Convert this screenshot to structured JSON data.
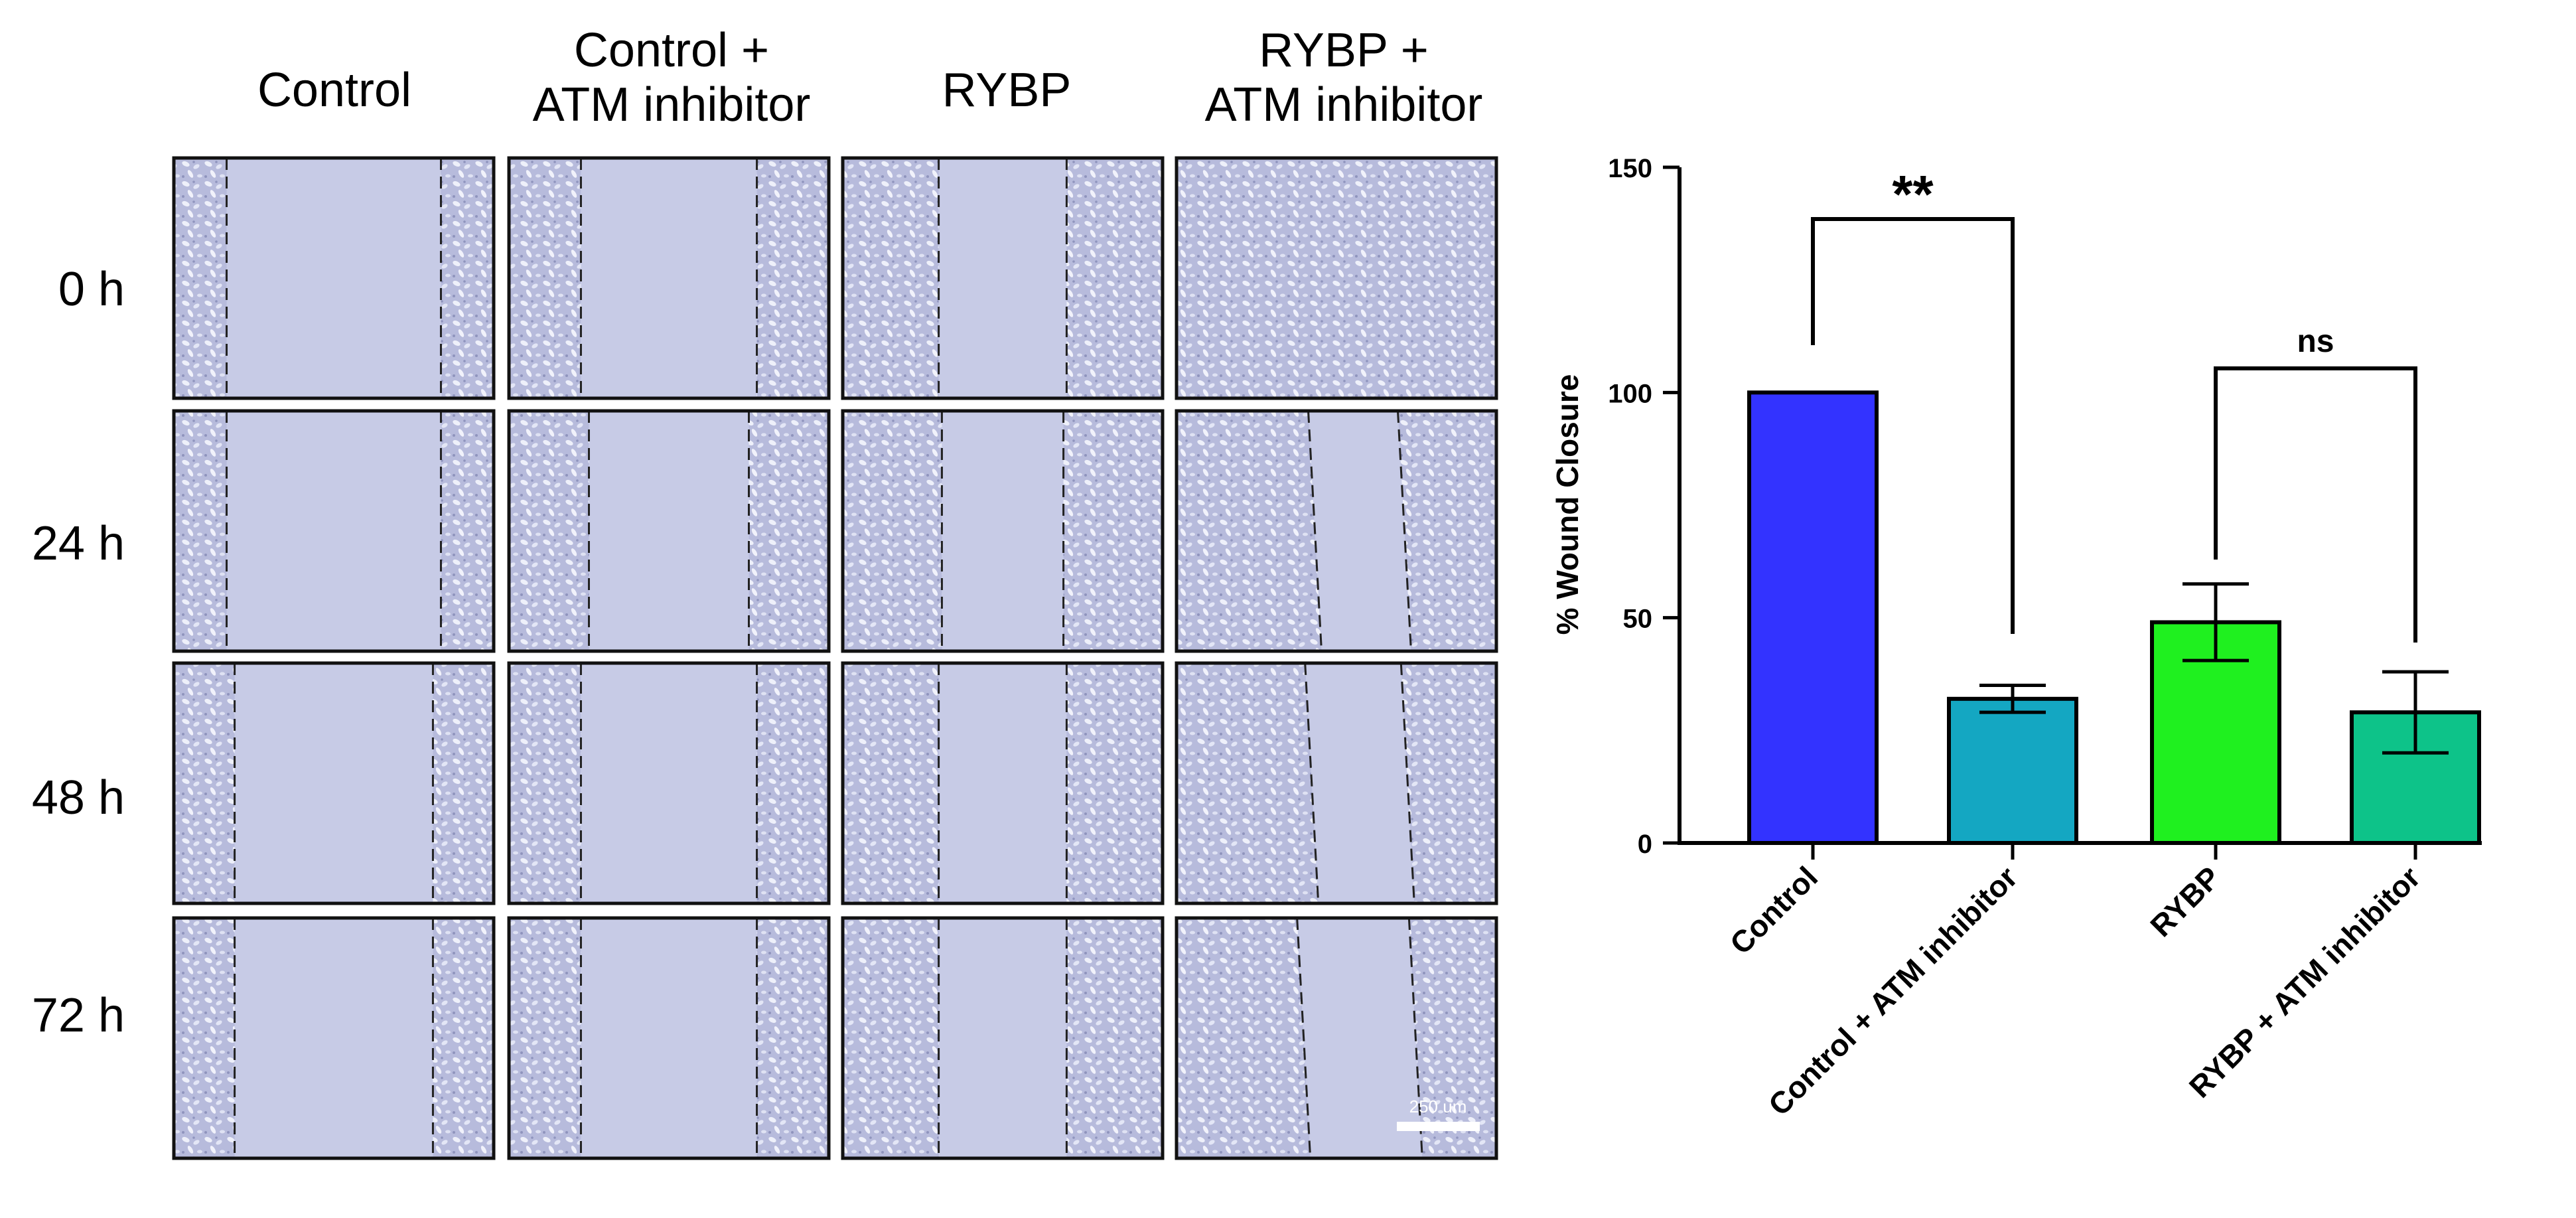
{
  "panel_columns": [
    "Control",
    "Control +\nATM inhibitor",
    "RYBP",
    "RYBP +\nATM inhibitor"
  ],
  "panel_rows": [
    "0 h",
    "24 h",
    "48 h",
    "72 h"
  ],
  "scale_bar_label": "250 um",
  "colors": {
    "micrograph_bg": "#c7cbe6",
    "micrograph_dense": "#b5b9da",
    "micrograph_cell": "#eef0fa",
    "border": "#111111"
  },
  "wound_gaps_fraction": [
    [
      0.67,
      0.55,
      0.4,
      0.0
    ],
    [
      0.67,
      0.5,
      0.38,
      0.28
    ],
    [
      0.62,
      0.55,
      0.4,
      0.3
    ],
    [
      0.62,
      0.55,
      0.4,
      0.35
    ]
  ],
  "chart_data": {
    "type": "bar",
    "categories": [
      "Control",
      "Control + ATM inhibitor",
      "RYBP",
      "RYBP + ATM inhibitor"
    ],
    "values": [
      100,
      32,
      49,
      29
    ],
    "errors": [
      0,
      3,
      8.5,
      9
    ],
    "colors": [
      "#3333ff",
      "#14a7c2",
      "#1ff01f",
      "#0dc389"
    ],
    "ylabel": "% Wound Closure",
    "xlabel": "",
    "ylim": [
      0,
      150
    ],
    "yticks": [
      0,
      50,
      100,
      150
    ],
    "grid": false,
    "significance": [
      {
        "from": "Control",
        "to": "Control + ATM inhibitor",
        "label": "**"
      },
      {
        "from": "RYBP",
        "to": "RYBP + ATM inhibitor",
        "label": "ns"
      }
    ]
  }
}
